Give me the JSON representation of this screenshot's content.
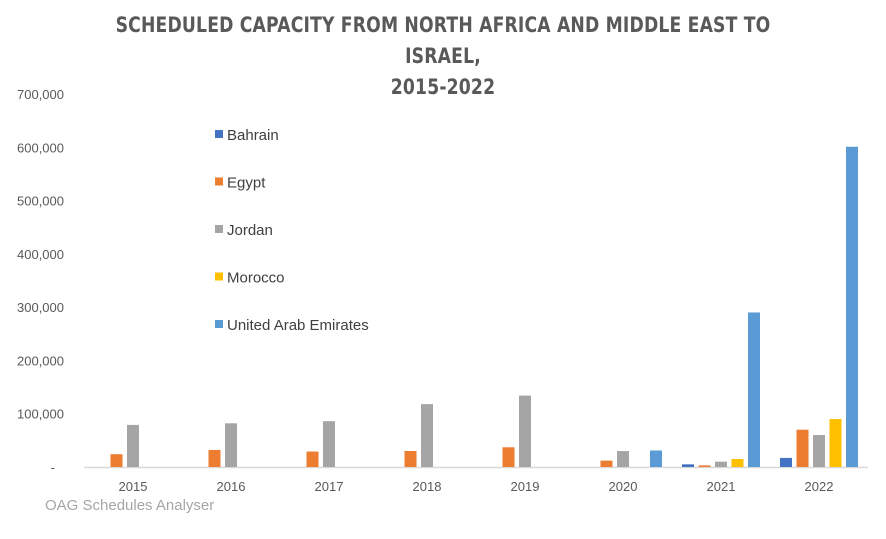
{
  "chart_data": {
    "type": "bar",
    "title_line1": "SCHEDULED CAPACITY FROM NORTH AFRICA AND MIDDLE EAST TO ISRAEL,",
    "title_line2": "2015-2022",
    "xlabel": "",
    "ylabel": "",
    "ylim": [
      0,
      700000
    ],
    "yticks": [
      0,
      100000,
      200000,
      300000,
      400000,
      500000,
      600000,
      700000
    ],
    "ytick_labels": [
      "-",
      "100,000",
      "200,000",
      "300,000",
      "400,000",
      "500,000",
      "600,000",
      "700,000"
    ],
    "grid": false,
    "legend_position": "upper-left-inside",
    "categories": [
      "2015",
      "2016",
      "2017",
      "2018",
      "2019",
      "2020",
      "2021",
      "2022"
    ],
    "series": [
      {
        "name": "Bahrain",
        "color": "#4472c4",
        "values": [
          0,
          0,
          0,
          0,
          0,
          0,
          5000,
          17000
        ]
      },
      {
        "name": "Egypt",
        "color": "#ed7d31",
        "values": [
          24000,
          32000,
          29000,
          30000,
          37000,
          12000,
          3000,
          70000
        ]
      },
      {
        "name": "Jordan",
        "color": "#a5a5a5",
        "values": [
          79000,
          82000,
          86000,
          118000,
          134000,
          30000,
          10000,
          60000
        ]
      },
      {
        "name": "Morocco",
        "color": "#ffc000",
        "values": [
          0,
          0,
          0,
          0,
          0,
          0,
          15000,
          90000
        ]
      },
      {
        "name": "United Arab Emirates",
        "color": "#5b9bd5",
        "values": [
          0,
          0,
          0,
          0,
          0,
          31000,
          290000,
          601000
        ]
      }
    ]
  },
  "source": "OAG Schedules Analyser"
}
